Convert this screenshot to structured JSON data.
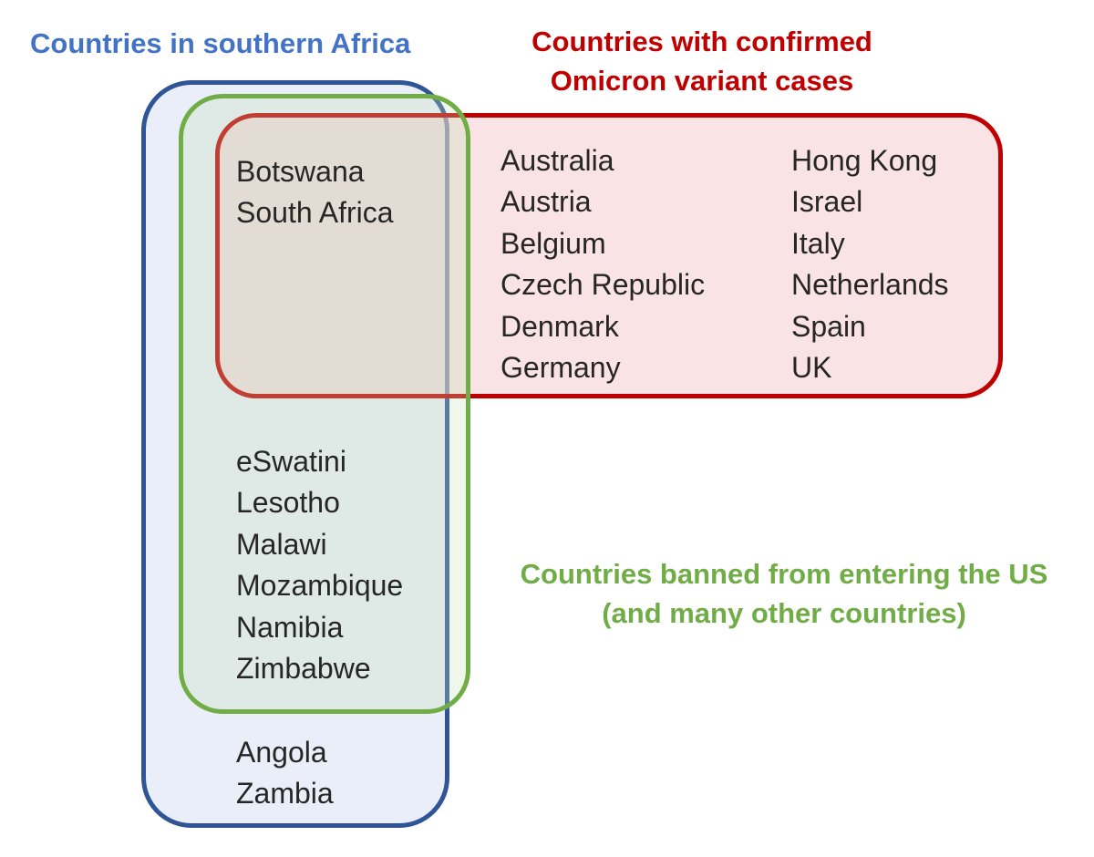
{
  "labels": {
    "southern_africa": "Countries in southern Africa",
    "omicron": [
      "Countries with confirmed",
      "Omicron variant cases"
    ],
    "banned": [
      "Countries banned from entering the US",
      "(and many other countries)"
    ]
  },
  "colors": {
    "southern_africa": "#4472c4",
    "omicron": "#c00000",
    "banned": "#70ad47"
  },
  "regions": {
    "omicron_southern_banned": [
      "Botswana",
      "South Africa"
    ],
    "omicron_only_col1": [
      "Australia",
      "Austria",
      "Belgium",
      "Czech Republic",
      "Denmark",
      "Germany"
    ],
    "omicron_only_col2": [
      "Hong Kong",
      "Israel",
      "Italy",
      "Netherlands",
      "Spain",
      "UK"
    ],
    "southern_banned": [
      "eSwatini",
      "Lesotho",
      "Malawi",
      "Mozambique",
      "Namibia",
      "Zimbabwe"
    ],
    "southern_only": [
      "Angola",
      "Zambia"
    ]
  }
}
